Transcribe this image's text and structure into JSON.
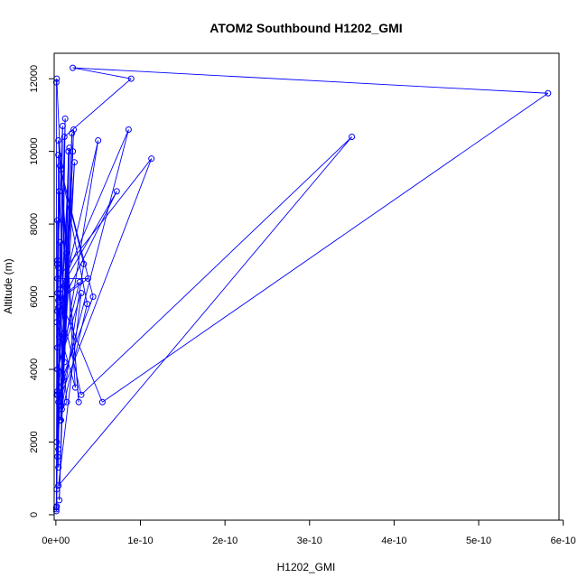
{
  "chart_data": {
    "type": "line",
    "title": "ATOM2 Southbound H1202_GMI",
    "xlabel": "H1202_GMI",
    "ylabel": "Altitude (m)",
    "xlim": [
      -2e-12,
      5.95e-10
    ],
    "ylim": [
      -150,
      12700
    ],
    "x_ticks": [
      0,
      1e-10,
      2e-10,
      3e-10,
      4e-10,
      5e-10,
      6e-10
    ],
    "x_tick_labels": [
      "0e+00",
      "1e-10",
      "2e-10",
      "3e-10",
      "4e-10",
      "5e-10",
      "6e-10"
    ],
    "y_ticks": [
      0,
      2000,
      4000,
      6000,
      8000,
      10000,
      12000
    ],
    "y_tick_labels": [
      "0",
      "2000",
      "4000",
      "6000",
      "8000",
      "10000",
      "12000"
    ],
    "grid": false,
    "legend": "none",
    "series_color": "#0000ff",
    "series": [
      {
        "x": [
          5e-13,
          1e-12,
          2e-12,
          1e-11,
          3e-12,
          2e-12,
          1.3e-11,
          2e-12,
          1.6e-11,
          4e-12,
          1.9e-11,
          6e-12,
          2.1e-11,
          7e-12,
          1.3e-11,
          3e-12,
          5e-13,
          2e-12,
          8e-12,
          3e-12,
          5e-12,
          4e-12,
          1.1e-11,
          6e-12,
          1.5e-11,
          9e-12,
          2e-11,
          1e-11,
          2.2e-11,
          1.2e-11,
          1e-12,
          5e-13,
          1e-12,
          2e-12,
          3e-12,
          4e-12,
          2e-12,
          1e-12,
          2e-12,
          3e-12,
          1e-12,
          2.3e-11,
          3e-12,
          2.7e-11,
          5e-12,
          3.3e-11,
          5e-12,
          3.7e-11,
          6e-12,
          4.4e-11,
          2e-12,
          5e-11,
          4e-12,
          7.2e-11,
          5e-12,
          8.6e-11,
          3e-12,
          1.13e-10,
          2e-12,
          3.8e-11,
          3e-12,
          2.8e-11,
          2e-12,
          3e-11,
          3e-12,
          3.5e-10,
          3e-11,
          2e-12,
          5.5e-11,
          5.82e-10,
          2e-11,
          8.9e-11,
          1e-11,
          1e-12,
          5e-13
        ],
        "y": [
          100,
          230,
          4600,
          5000,
          9900,
          1600,
          7200,
          3300,
          10100,
          400,
          10500,
          3000,
          10600,
          2900,
          3100,
          5700,
          200,
          6900,
          10700,
          1800,
          7500,
          4900,
          10900,
          2600,
          10000,
          3700,
          10000,
          4200,
          9700,
          6300,
          12000,
          11900,
          2000,
          8100,
          6800,
          8900,
          5600,
          3300,
          7000,
          1300,
          5300,
          3500,
          10300,
          3100,
          9600,
          6900,
          2600,
          5800,
          9500,
          6000,
          3400,
          10300,
          5700,
          8900,
          6200,
          10600,
          3100,
          9800,
          6500,
          6500,
          5900,
          6400,
          4000,
          6100,
          800,
          10400,
          3300,
          6100,
          3100,
          11600,
          12300,
          12000,
          10400,
          700,
          150
        ]
      }
    ]
  }
}
